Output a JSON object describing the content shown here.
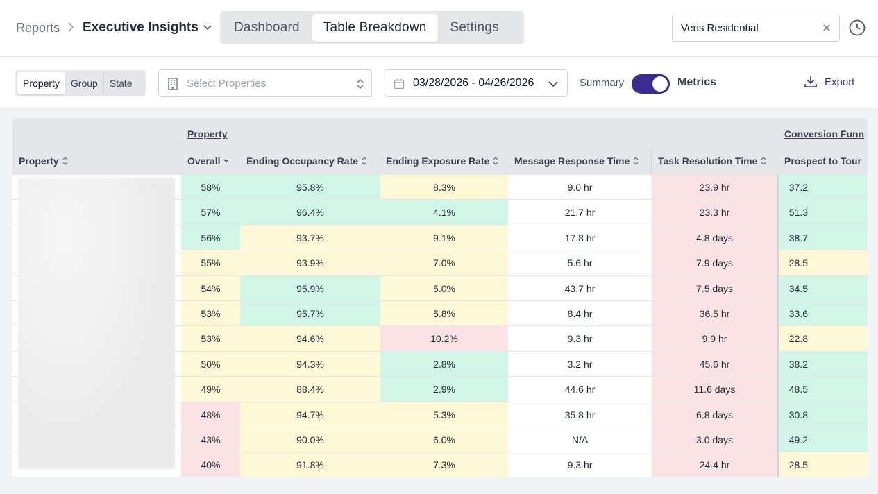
{
  "breadcrumb": {
    "root": "Reports",
    "current": "Executive Insights"
  },
  "tabs": [
    {
      "label": "Dashboard",
      "active": false
    },
    {
      "label": "Table Breakdown",
      "active": true
    },
    {
      "label": "Settings",
      "active": false
    }
  ],
  "search": {
    "value": "Veris Residential"
  },
  "filters": {
    "segments": [
      {
        "label": "Property",
        "active": true
      },
      {
        "label": "Group",
        "active": false
      },
      {
        "label": "State",
        "active": false
      }
    ],
    "properties_placeholder": "Select Properties",
    "date_range": "03/28/2026 - 04/26/2026",
    "summary_label": "Summary",
    "metrics_label": "Metrics",
    "toggle_on": true,
    "export_label": "Export"
  },
  "colors": {
    "accent": "#3b2a8f",
    "good": "#d1f5e6",
    "neutral": "#fef8d6",
    "bad": "#fbe2e4"
  },
  "table": {
    "groups": {
      "property": "Property",
      "conversion": "Conversion Funn"
    },
    "columns": {
      "property": "Property",
      "overall": "Overall",
      "occupancy": "Ending Occupancy Rate",
      "exposure": "Ending Exposure Rate",
      "message": "Message Response Time",
      "task": "Task Resolution Time",
      "prospect": "Prospect to Tour"
    },
    "rows": [
      {
        "overall": [
          "58%",
          "green"
        ],
        "occupancy": [
          "95.8%",
          "green"
        ],
        "exposure": [
          "8.3%",
          "yellow"
        ],
        "message": [
          "9.0 hr",
          "white"
        ],
        "task": [
          "23.9 hr",
          "red"
        ],
        "prospect": [
          "37.2",
          "green"
        ]
      },
      {
        "overall": [
          "57%",
          "green"
        ],
        "occupancy": [
          "96.4%",
          "green"
        ],
        "exposure": [
          "4.1%",
          "green"
        ],
        "message": [
          "21.7 hr",
          "white"
        ],
        "task": [
          "23.3 hr",
          "red"
        ],
        "prospect": [
          "51.3",
          "green"
        ]
      },
      {
        "overall": [
          "56%",
          "green"
        ],
        "occupancy": [
          "93.7%",
          "yellow"
        ],
        "exposure": [
          "9.1%",
          "yellow"
        ],
        "message": [
          "17.8 hr",
          "white"
        ],
        "task": [
          "4.8 days",
          "red"
        ],
        "prospect": [
          "38.7",
          "green"
        ]
      },
      {
        "overall": [
          "55%",
          "yellow"
        ],
        "occupancy": [
          "93.9%",
          "yellow"
        ],
        "exposure": [
          "7.0%",
          "yellow"
        ],
        "message": [
          "5.6 hr",
          "white"
        ],
        "task": [
          "7.9 days",
          "red"
        ],
        "prospect": [
          "28.5",
          "yellow"
        ]
      },
      {
        "overall": [
          "54%",
          "yellow"
        ],
        "occupancy": [
          "95.9%",
          "green"
        ],
        "exposure": [
          "5.0%",
          "yellow"
        ],
        "message": [
          "43.7 hr",
          "white"
        ],
        "task": [
          "7.5 days",
          "red"
        ],
        "prospect": [
          "34.5",
          "green"
        ]
      },
      {
        "overall": [
          "53%",
          "yellow"
        ],
        "occupancy": [
          "95.7%",
          "green"
        ],
        "exposure": [
          "5.8%",
          "yellow"
        ],
        "message": [
          "8.4 hr",
          "white"
        ],
        "task": [
          "36.5 hr",
          "red"
        ],
        "prospect": [
          "33.6",
          "green"
        ]
      },
      {
        "overall": [
          "53%",
          "yellow"
        ],
        "occupancy": [
          "94.6%",
          "yellow"
        ],
        "exposure": [
          "10.2%",
          "red"
        ],
        "message": [
          "9.3 hr",
          "white"
        ],
        "task": [
          "9.9 hr",
          "red"
        ],
        "prospect": [
          "22.8",
          "yellow"
        ]
      },
      {
        "overall": [
          "50%",
          "yellow"
        ],
        "occupancy": [
          "94.3%",
          "yellow"
        ],
        "exposure": [
          "2.8%",
          "green"
        ],
        "message": [
          "3.2 hr",
          "white"
        ],
        "task": [
          "45.6 hr",
          "red"
        ],
        "prospect": [
          "38.2",
          "green"
        ]
      },
      {
        "overall": [
          "49%",
          "yellow"
        ],
        "occupancy": [
          "88.4%",
          "yellow"
        ],
        "exposure": [
          "2.9%",
          "green"
        ],
        "message": [
          "44.6 hr",
          "white"
        ],
        "task": [
          "11.6 days",
          "red"
        ],
        "prospect": [
          "48.5",
          "green"
        ]
      },
      {
        "overall": [
          "48%",
          "red"
        ],
        "occupancy": [
          "94.7%",
          "yellow"
        ],
        "exposure": [
          "5.3%",
          "yellow"
        ],
        "message": [
          "35.8 hr",
          "white"
        ],
        "task": [
          "6.8 days",
          "red"
        ],
        "prospect": [
          "30.8",
          "green"
        ]
      },
      {
        "overall": [
          "43%",
          "red"
        ],
        "occupancy": [
          "90.0%",
          "yellow"
        ],
        "exposure": [
          "6.0%",
          "yellow"
        ],
        "message": [
          "N/A",
          "white"
        ],
        "task": [
          "3.0 days",
          "red"
        ],
        "prospect": [
          "49.2",
          "green"
        ]
      },
      {
        "overall": [
          "40%",
          "red"
        ],
        "occupancy": [
          "91.8%",
          "yellow"
        ],
        "exposure": [
          "7.3%",
          "yellow"
        ],
        "message": [
          "9.3 hr",
          "white"
        ],
        "task": [
          "24.4 hr",
          "red"
        ],
        "prospect": [
          "28.5",
          "yellow"
        ]
      }
    ]
  }
}
